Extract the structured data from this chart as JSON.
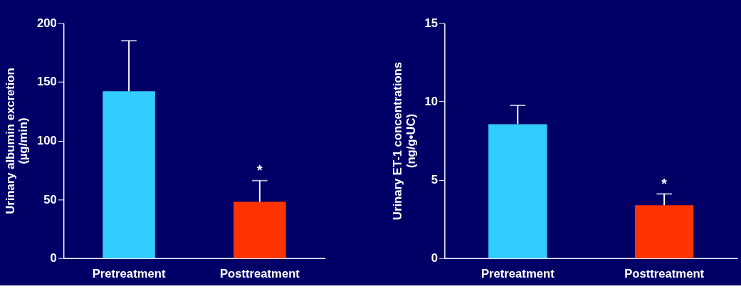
{
  "chart_data": [
    {
      "type": "bar",
      "ylabel": "Urinary albumin excretion\n(µg/min)",
      "categories": [
        "Pretreatment",
        "Posttreatment"
      ],
      "values": [
        142,
        48
      ],
      "colors": [
        "#33ccff",
        "#ff3300"
      ],
      "errors": [
        [
          142,
          185
        ],
        [
          48,
          66
        ]
      ],
      "ylim": [
        0,
        200
      ],
      "yticks": [
        0,
        50,
        100,
        150,
        200
      ],
      "grid": false,
      "legend": false,
      "annotations": [
        {
          "text": "*",
          "x": "Posttreatment",
          "y": 66
        }
      ]
    },
    {
      "type": "bar",
      "ylabel": "Urinary ET-1 concentrations\n(ng/g•UC)",
      "categories": [
        "Pretreatment",
        "Posttreatment"
      ],
      "values": [
        8.55,
        3.38
      ],
      "colors": [
        "#33ccff",
        "#ff3300"
      ],
      "errors": [
        [
          8.55,
          9.75
        ],
        [
          3.38,
          4.1
        ]
      ],
      "ylim": [
        0,
        15
      ],
      "yticks": [
        0,
        5,
        10,
        15
      ],
      "grid": false,
      "legend": false,
      "annotations": [
        {
          "text": "*",
          "x": "Posttreatment",
          "y": 4.1
        }
      ]
    }
  ]
}
